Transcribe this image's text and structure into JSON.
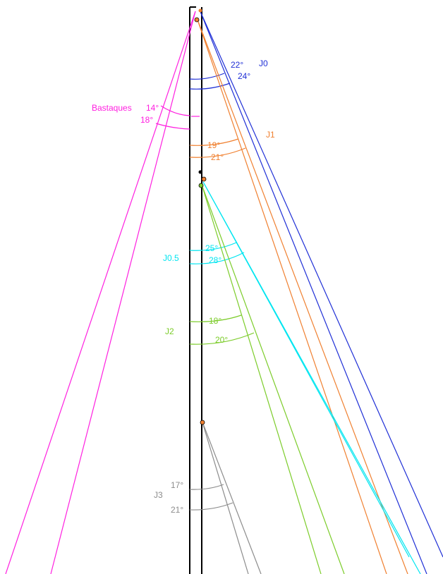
{
  "colors": {
    "mast": "#000000",
    "j0": "#1f2fd6",
    "j1": "#f08030",
    "j05": "#00e5f0",
    "j2": "#7ccc2a",
    "j3": "#8c8c8c",
    "bastaques": "#ff20e0"
  },
  "labels": {
    "j0": "J0",
    "j1": "J1",
    "j05": "J0.5",
    "j2": "J2",
    "j3": "J3",
    "bastaques": "Bastaques"
  },
  "angles": {
    "j0_a": "22°",
    "j0_b": "24°",
    "j1_a": "19°",
    "j1_b": "21°",
    "j05_a": "25°",
    "j05_b": "28°",
    "j2_a": "18°",
    "j2_b": "20°",
    "j3_a": "17°",
    "j3_b": "21°",
    "bast_a": "14°",
    "bast_b": "18°"
  }
}
